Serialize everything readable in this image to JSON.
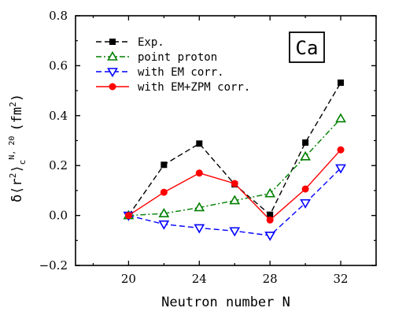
{
  "chart_data": {
    "type": "line",
    "xlabel": "Neutron number N",
    "ylabel": "δ⟨r²⟩c^{N,20} (fm²)",
    "ylabel_parts": {
      "main": "δ⟨r",
      "sup1": "2",
      "close": "⟩",
      "sub": "c",
      "sup2": "N, 20",
      "unit": "(fm",
      "unit_sup": "2",
      "unit_close": ")"
    },
    "xlim": [
      17,
      34
    ],
    "ylim": [
      -0.2,
      0.8
    ],
    "x_ticks": [
      20,
      24,
      28,
      32
    ],
    "x_tick_labels": [
      "20",
      "24",
      "28",
      "32"
    ],
    "y_ticks": [
      -0.2,
      0.0,
      0.2,
      0.4,
      0.6,
      0.8
    ],
    "y_tick_labels": [
      "−0.2",
      "0.0",
      "0.2",
      "0.4",
      "0.6",
      "0.8"
    ],
    "grid": false,
    "legend_position": "top-left",
    "annotation": "Ca",
    "series": [
      {
        "name": "Exp.",
        "color": "#000000",
        "line_style": "dashed",
        "marker": "square-filled",
        "x": [
          20,
          22,
          24,
          26,
          28,
          30,
          32
        ],
        "values": [
          0.0,
          0.203,
          0.288,
          0.125,
          0.003,
          0.292,
          0.532
        ]
      },
      {
        "name": "point proton",
        "color": "#008000",
        "line_style": "dash-dot",
        "marker": "triangle-up-open",
        "x": [
          20,
          22,
          24,
          26,
          28,
          30,
          32
        ],
        "values": [
          0.0,
          0.008,
          0.032,
          0.06,
          0.088,
          0.236,
          0.388
        ]
      },
      {
        "name": "with EM corr.",
        "color": "#0000ff",
        "line_style": "dashed",
        "marker": "triangle-down-open",
        "x": [
          20,
          22,
          24,
          26,
          28,
          30,
          32
        ],
        "values": [
          0.0,
          -0.035,
          -0.05,
          -0.062,
          -0.08,
          0.05,
          0.19
        ]
      },
      {
        "name": "with EM+ZPM corr.",
        "color": "#ff0000",
        "line_style": "solid",
        "marker": "circle-filled",
        "x": [
          20,
          22,
          24,
          26,
          28,
          30,
          32
        ],
        "values": [
          0.0,
          0.093,
          0.17,
          0.128,
          -0.018,
          0.106,
          0.263
        ]
      }
    ]
  }
}
